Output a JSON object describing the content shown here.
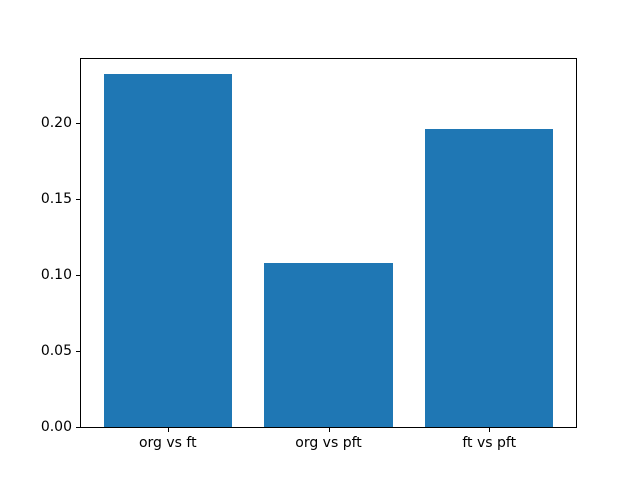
{
  "chart_data": {
    "type": "bar",
    "title": "",
    "xlabel": "",
    "ylabel": "",
    "categories": [
      "org vs ft",
      "org vs pft",
      "ft vs pft"
    ],
    "values": [
      0.232,
      0.108,
      0.196
    ],
    "bar_color": "#1f77b4",
    "axis_color": "#000000",
    "background_color": "#ffffff",
    "ylim": [
      0,
      0.242
    ],
    "yticks": [
      0,
      0.05,
      0.1,
      0.15,
      0.2
    ],
    "ytick_labels": [
      "0.00",
      "0.05",
      "0.10",
      "0.15",
      "0.20"
    ],
    "xlim": [
      -0.54,
      2.54
    ],
    "bar_width": 0.8,
    "grid": false,
    "legend": "none"
  }
}
